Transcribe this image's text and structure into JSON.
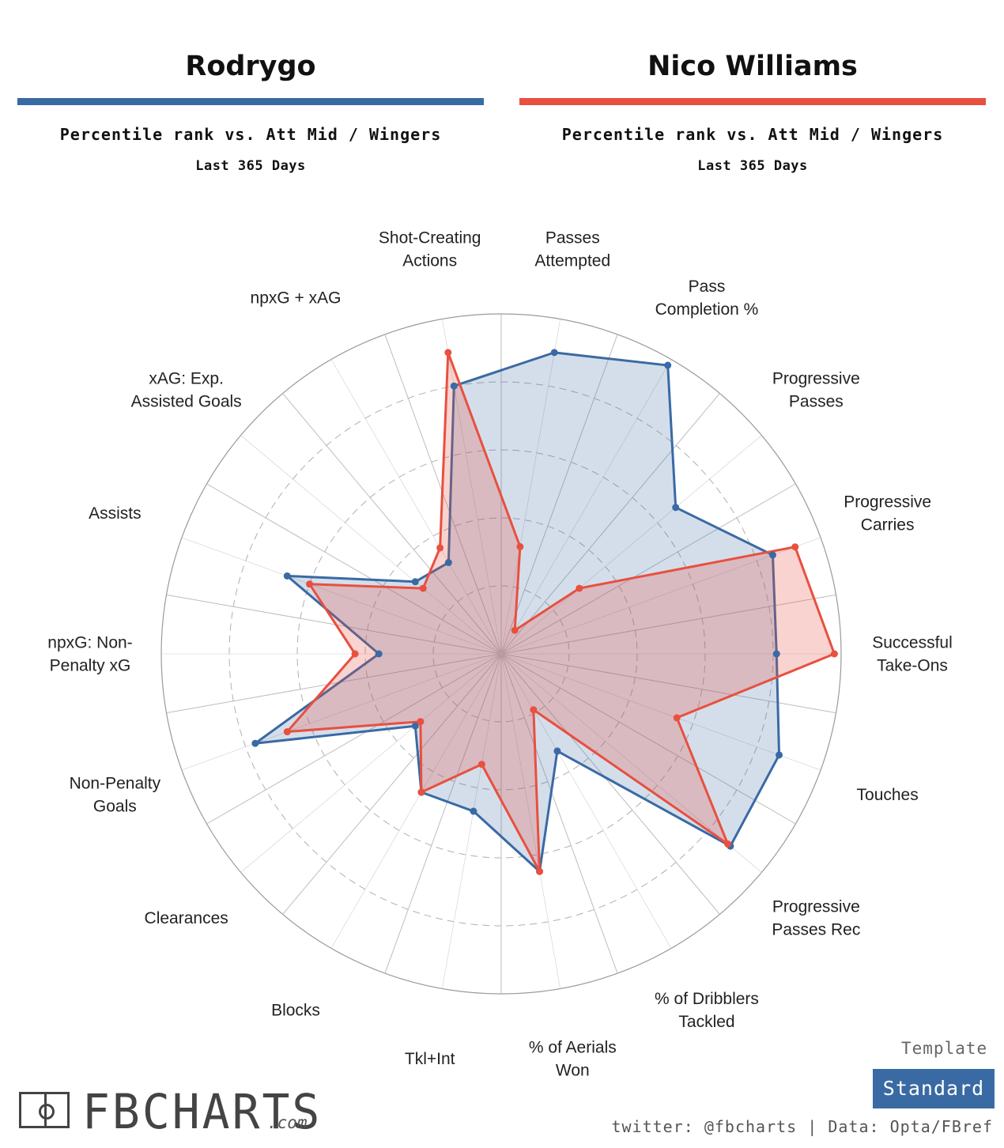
{
  "players": [
    {
      "name": "Rodrygo",
      "color": "#3a6aa3",
      "subtitle": "Percentile rank vs. Att Mid / Wingers",
      "period": "Last 365 Days"
    },
    {
      "name": "Nico Williams",
      "color": "#e8503f",
      "subtitle": "Percentile rank vs. Att Mid / Wingers",
      "period": "Last 365 Days"
    }
  ],
  "chart_data": {
    "type": "radar",
    "scale_max": 100,
    "ring_values": [
      20,
      40,
      60,
      80,
      100
    ],
    "categories": [
      "Passes Attempted",
      "Pass Completion %",
      "Progressive Passes",
      "Progressive Carries",
      "Successful Take-Ons",
      "Touches",
      "Progressive Passes Rec",
      "% of Dribblers Tackled",
      "% of Aerials Won",
      "Tkl+Int",
      "Blocks",
      "Clearances",
      "Non-Penalty Goals",
      "npxG: Non-Penalty xG",
      "Assists",
      "xAG: Exp. Assisted Goals",
      "npxG + xAG",
      "Shot-Creating Actions"
    ],
    "axis_labels": [
      [
        "Passes",
        "Attempted"
      ],
      [
        "Pass",
        "Completion %"
      ],
      [
        "Progressive",
        "Passes"
      ],
      [
        "Progressive",
        "Carries"
      ],
      [
        "Successful",
        "Take-Ons"
      ],
      [
        "Touches"
      ],
      [
        "Progressive",
        "Passes Rec"
      ],
      [
        "% of Dribblers",
        "Tackled"
      ],
      [
        "% of Aerials",
        "Won"
      ],
      [
        "Tkl+Int"
      ],
      [
        "Blocks"
      ],
      [
        "Clearances"
      ],
      [
        "Non-Penalty",
        "Goals"
      ],
      [
        "npxG: Non-",
        "Penalty xG"
      ],
      [
        "Assists"
      ],
      [
        "xAG: Exp.",
        "Assisted Goals"
      ],
      [
        "npxG + xAG"
      ],
      [
        "Shot-Creating",
        "Actions"
      ]
    ],
    "series": [
      {
        "name": "Rodrygo",
        "color": "#3a6aa3",
        "values": [
          90,
          98,
          67,
          85,
          81,
          87,
          88,
          33,
          65,
          47,
          47,
          33,
          77,
          36,
          67,
          33,
          31,
          80
        ]
      },
      {
        "name": "Nico Williams",
        "color": "#e8503f",
        "values": [
          32,
          8,
          30,
          92,
          98,
          55,
          87,
          19,
          65,
          33,
          47,
          31,
          67,
          43,
          60,
          30,
          36,
          90
        ]
      }
    ]
  },
  "footer": {
    "logo_word": "FBCHARTS",
    "logo_suffix": ".com",
    "template_label": "Template",
    "template_value": "Standard",
    "credits": "twitter: @fbcharts | Data: Opta/FBref"
  }
}
